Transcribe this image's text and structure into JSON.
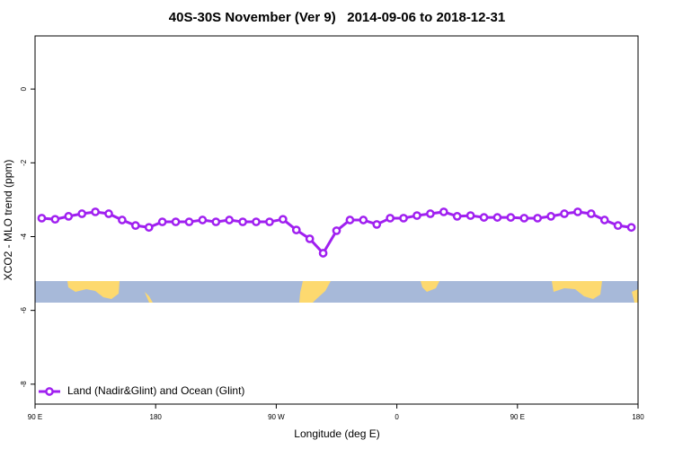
{
  "chart_data": {
    "type": "line",
    "title": "40S-30S November (Ver 9)   2014-09-06 to 2018-12-31",
    "x_label": "Longitude (deg E)",
    "y_label": "XCO2 - MLO trend (ppm)",
    "x": [
      95,
      105,
      115,
      125,
      135,
      145,
      155,
      165,
      175,
      185,
      195,
      205,
      215,
      225,
      235,
      245,
      255,
      265,
      275,
      285,
      295,
      305,
      315,
      325,
      335,
      345,
      355,
      365,
      375,
      385,
      395,
      405,
      415,
      425,
      435,
      445,
      455,
      465,
      475,
      485,
      495,
      505,
      515,
      525,
      535
    ],
    "series": [
      {
        "name": "Land (Nadir&Glint) and Ocean (Glint)",
        "color": "#a020f0",
        "values": [
          -3.5,
          -3.53,
          -3.45,
          -3.38,
          -3.33,
          -3.38,
          -3.55,
          -3.7,
          -3.75,
          -3.6,
          -3.6,
          -3.6,
          -3.55,
          -3.6,
          -3.55,
          -3.6,
          -3.6,
          -3.6,
          -3.53,
          -3.82,
          -4.06,
          -4.45,
          -3.84,
          -3.55,
          -3.55,
          -3.67,
          -3.5,
          -3.5,
          -3.43,
          -3.38,
          -3.33,
          -3.45,
          -3.43,
          -3.48,
          -3.48,
          -3.48,
          -3.5,
          -3.5,
          -3.45,
          -3.38,
          -3.33,
          -3.38,
          -3.55,
          -3.7,
          -3.75
        ]
      }
    ],
    "xlim": [
      90,
      540
    ],
    "xticks": [
      {
        "value": 90,
        "label": "90 E"
      },
      180,
      {
        "value": 270,
        "label": "90 W"
      },
      {
        "value": 360,
        "label": "0"
      },
      {
        "value": 450,
        "label": "90 E"
      },
      {
        "value": 540,
        "label": "180"
      }
    ],
    "ylim": [
      -8.54,
      1.44
    ],
    "yticks": [
      -8,
      -6,
      -4,
      -2,
      0
    ],
    "legend": "bottom-left"
  }
}
